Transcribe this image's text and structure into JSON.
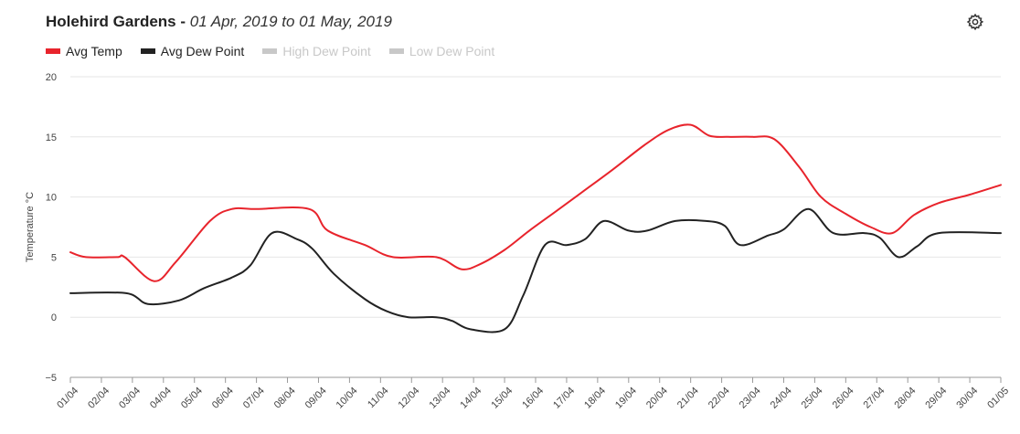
{
  "header": {
    "location": "Holehird Gardens -",
    "range": "01 Apr, 2019 to 01 May, 2019"
  },
  "settings_icon": "gear-icon",
  "chart_data": {
    "type": "line",
    "ylabel": "Temperature °C",
    "ylim": [
      -5,
      20
    ],
    "yticks": [
      -5,
      0,
      5,
      10,
      15,
      20
    ],
    "grid": true,
    "legend_position": "top-left",
    "x": [
      "01/04",
      "02/04",
      "03/04",
      "04/04",
      "05/04",
      "06/04",
      "07/04",
      "08/04",
      "09/04",
      "10/04",
      "11/04",
      "12/04",
      "13/04",
      "14/04",
      "15/04",
      "16/04",
      "17/04",
      "18/04",
      "19/04",
      "20/04",
      "21/04",
      "22/04",
      "23/04",
      "24/04",
      "25/04",
      "26/04",
      "27/04",
      "28/04",
      "29/04",
      "30/04",
      "01/05"
    ],
    "series": [
      {
        "name": "Avg Temp",
        "color": "#e8242c",
        "visible": true,
        "points": [
          [
            0,
            5.4
          ],
          [
            0.5,
            5
          ],
          [
            1.5,
            5
          ],
          [
            1.75,
            5
          ],
          [
            2.7,
            3
          ],
          [
            3.4,
            4.6
          ],
          [
            4.5,
            8
          ],
          [
            5.2,
            9
          ],
          [
            6,
            9
          ],
          [
            7.7,
            9
          ],
          [
            8.3,
            7.2
          ],
          [
            9.5,
            6
          ],
          [
            10.4,
            5
          ],
          [
            11.8,
            5
          ],
          [
            12.6,
            4
          ],
          [
            13.2,
            4.4
          ],
          [
            14,
            5.6
          ],
          [
            14.8,
            7.2
          ],
          [
            15.6,
            8.7
          ],
          [
            16.5,
            10.4
          ],
          [
            17.5,
            12.3
          ],
          [
            18.5,
            14.3
          ],
          [
            19.3,
            15.6
          ],
          [
            20,
            16
          ],
          [
            20.6,
            15.1
          ],
          [
            21.2,
            15
          ],
          [
            22,
            15
          ],
          [
            22.7,
            14.8
          ],
          [
            23.5,
            12.5
          ],
          [
            24.2,
            10
          ],
          [
            25,
            8.6
          ],
          [
            25.8,
            7.5
          ],
          [
            26.5,
            7
          ],
          [
            27.2,
            8.5
          ],
          [
            28,
            9.5
          ],
          [
            29,
            10.2
          ],
          [
            30,
            11
          ]
        ]
      },
      {
        "name": "Avg Dew Point",
        "color": "#222222",
        "visible": true,
        "points": [
          [
            0,
            2
          ],
          [
            1.8,
            2
          ],
          [
            2.5,
            1.1
          ],
          [
            3.5,
            1.4
          ],
          [
            4.3,
            2.4
          ],
          [
            5.2,
            3.3
          ],
          [
            5.8,
            4.3
          ],
          [
            6.5,
            7
          ],
          [
            7.3,
            6.5
          ],
          [
            7.8,
            5.7
          ],
          [
            8.5,
            3.6
          ],
          [
            9.5,
            1.5
          ],
          [
            10.2,
            0.5
          ],
          [
            10.9,
            0
          ],
          [
            11.8,
            0
          ],
          [
            12.3,
            -0.3
          ],
          [
            12.9,
            -1
          ],
          [
            14,
            -1
          ],
          [
            14.6,
            1.8
          ],
          [
            15.3,
            6
          ],
          [
            16,
            6
          ],
          [
            16.6,
            6.5
          ],
          [
            17.2,
            8
          ],
          [
            18,
            7.2
          ],
          [
            18.6,
            7.2
          ],
          [
            19.5,
            8
          ],
          [
            20.5,
            8
          ],
          [
            21.1,
            7.6
          ],
          [
            21.6,
            6
          ],
          [
            22.5,
            6.8
          ],
          [
            23,
            7.3
          ],
          [
            23.8,
            9
          ],
          [
            24.6,
            7
          ],
          [
            25.6,
            7
          ],
          [
            26.1,
            6.6
          ],
          [
            26.7,
            5
          ],
          [
            27.3,
            5.9
          ],
          [
            28,
            7
          ],
          [
            30,
            7
          ]
        ]
      },
      {
        "name": "High Dew Point",
        "color": "#c8c8c8",
        "visible": false,
        "points": []
      },
      {
        "name": "Low Dew Point",
        "color": "#c8c8c8",
        "visible": false,
        "points": []
      }
    ]
  }
}
